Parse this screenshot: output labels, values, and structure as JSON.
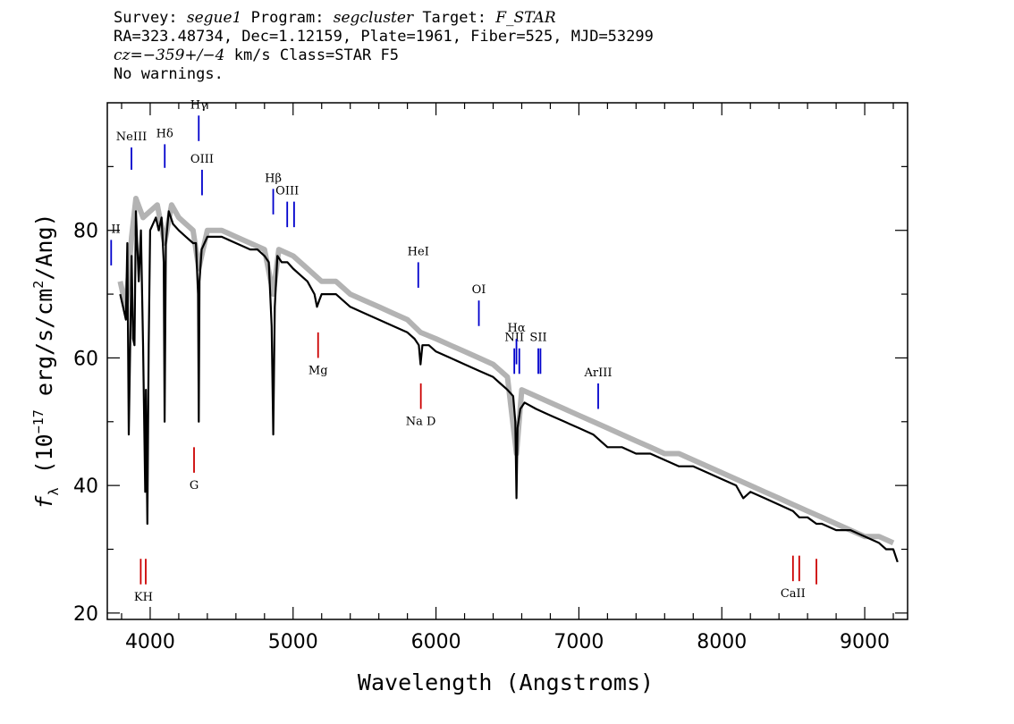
{
  "header": {
    "line1": {
      "survey_label": "Survey: ",
      "survey": "segue1",
      "program_label": " Program: ",
      "program": "segcluster",
      "target_label": " Target: ",
      "target": "F_STAR"
    },
    "line2": "RA=323.48734, Dec=1.12159, Plate=1961, Fiber=525, MJD=53299",
    "line3": {
      "cz_label": "cz=",
      "cz": "−359+/−4",
      "rest": " km/s Class=STAR F5"
    },
    "line4": "No warnings."
  },
  "chart_data": {
    "type": "line",
    "xlabel": "Wavelength (Angstroms)",
    "ylabel": "f_λ (10^-17 erg/s/cm^2/Ang)",
    "xlim": [
      3700,
      9300
    ],
    "ylim": [
      19,
      100
    ],
    "x_ticks": [
      4000,
      5000,
      6000,
      7000,
      8000,
      9000
    ],
    "y_ticks": [
      20,
      40,
      60,
      80
    ],
    "series": [
      {
        "color": "#000000",
        "x": [
          3790,
          3810,
          3830,
          3840,
          3850,
          3870,
          3880,
          3890,
          3900,
          3920,
          3935,
          3950,
          3965,
          3970,
          3980,
          3990,
          4000,
          4020,
          4040,
          4060,
          4080,
          4095,
          4101,
          4110,
          4130,
          4160,
          4200,
          4250,
          4300,
          4320,
          4335,
          4340,
          4345,
          4360,
          4400,
          4500,
          4600,
          4700,
          4750,
          4800,
          4830,
          4850,
          4861,
          4872,
          4890,
          4920,
          4960,
          5000,
          5050,
          5100,
          5150,
          5167,
          5183,
          5200,
          5250,
          5300,
          5400,
          5500,
          5600,
          5700,
          5800,
          5850,
          5880,
          5892,
          5905,
          5950,
          6000,
          6100,
          6200,
          6300,
          6400,
          6450,
          6500,
          6540,
          6555,
          6563,
          6571,
          6590,
          6620,
          6700,
          6800,
          6900,
          7000,
          7100,
          7150,
          7200,
          7300,
          7400,
          7500,
          7600,
          7700,
          7800,
          7900,
          8000,
          8100,
          8150,
          8200,
          8300,
          8400,
          8498,
          8542,
          8600,
          8662,
          8700,
          8800,
          8900,
          9000,
          9100,
          9150,
          9200,
          9230
        ],
        "y": [
          70,
          68,
          66,
          78,
          48,
          76,
          63,
          62,
          83,
          72,
          80,
          62,
          39,
          55,
          34,
          62,
          80,
          81,
          82,
          80,
          82,
          75,
          50,
          78,
          83,
          81,
          80,
          79,
          78,
          78,
          70,
          50,
          72,
          77,
          79,
          79,
          78,
          77,
          77,
          76,
          75,
          65,
          48,
          68,
          76,
          75,
          75,
          74,
          73,
          72,
          70,
          68,
          69,
          70,
          70,
          70,
          68,
          67,
          66,
          65,
          64,
          63,
          62,
          59,
          62,
          62,
          61,
          60,
          59,
          58,
          57,
          56,
          55,
          54,
          50,
          38,
          49,
          52,
          53,
          52,
          51,
          50,
          49,
          48,
          47,
          46,
          46,
          45,
          45,
          44,
          43,
          43,
          42,
          41,
          40,
          38,
          39,
          38,
          37,
          36,
          35,
          35,
          34,
          34,
          33,
          33,
          32,
          31,
          30,
          30,
          28
        ]
      },
      {
        "name": "",
        "color": "#b3b3b3",
        "x": [
          3790,
          3830,
          3870,
          3900,
          3950,
          4000,
          4050,
          4101,
          4150,
          4200,
          4250,
          4300,
          4340,
          4400,
          4500,
          4600,
          4700,
          4800,
          4861,
          4900,
          5000,
          5100,
          5200,
          5300,
          5400,
          5500,
          5600,
          5700,
          5800,
          5892,
          6000,
          6100,
          6200,
          6300,
          6400,
          6500,
          6563,
          6600,
          6700,
          6800,
          6900,
          7000,
          7100,
          7200,
          7300,
          7400,
          7500,
          7600,
          7700,
          7800,
          7900,
          8000,
          8100,
          8200,
          8300,
          8400,
          8500,
          8600,
          8700,
          8800,
          8900,
          9000,
          9100,
          9200
        ],
        "y": [
          72,
          68,
          79,
          85,
          82,
          83,
          84,
          78,
          84,
          82,
          81,
          80,
          74,
          80,
          80,
          79,
          78,
          77,
          70,
          77,
          76,
          74,
          72,
          72,
          70,
          69,
          68,
          67,
          66,
          64,
          63,
          62,
          61,
          60,
          59,
          57,
          45,
          55,
          54,
          53,
          52,
          51,
          50,
          49,
          48,
          47,
          46,
          45,
          45,
          44,
          43,
          42,
          41,
          40,
          39,
          38,
          37,
          36,
          35,
          34,
          33,
          32,
          32,
          31
        ]
      }
    ],
    "emission_lines": [
      {
        "label": "NeIII",
        "wave": 3869,
        "color": "#0000cc",
        "y1": 93,
        "y2": 89.5
      },
      {
        "label": "Hδ",
        "wave": 4102,
        "color": "#0000cc",
        "y1": 93.5,
        "y2": 89.8
      },
      {
        "label": "Hγ",
        "wave": 4340,
        "color": "#0000cc",
        "y1": 98,
        "y2": 94
      },
      {
        "label": "OIII",
        "wave": 4363,
        "color": "#0000cc",
        "y1": 89.5,
        "y2": 85.5
      },
      {
        "label": "Hβ",
        "wave": 4861,
        "color": "#0000cc",
        "y1": 86.5,
        "y2": 82.5
      },
      {
        "label": "OIII",
        "wave": 4959,
        "color": "#0000cc",
        "y1": 84.5,
        "y2": 80.5
      },
      {
        "label": "",
        "wave": 5007,
        "color": "#0000cc",
        "y1": 84.5,
        "y2": 80.5
      },
      {
        "label": "HeI",
        "wave": 5876,
        "color": "#0000cc",
        "y1": 75,
        "y2": 71
      },
      {
        "label": "OI",
        "wave": 6300,
        "color": "#0000cc",
        "y1": 69,
        "y2": 65
      },
      {
        "label": "NII",
        "wave": 6548,
        "color": "#0000cc",
        "y1": 61.5,
        "y2": 57.5
      },
      {
        "label": "Hα",
        "wave": 6563,
        "color": "#0000cc",
        "y1": 63,
        "y2": 59
      },
      {
        "label": "",
        "wave": 6583,
        "color": "#0000cc",
        "y1": 61.5,
        "y2": 57.5
      },
      {
        "label": "SII",
        "wave": 6716,
        "color": "#0000cc",
        "y1": 61.5,
        "y2": 57.5
      },
      {
        "label": "",
        "wave": 6731,
        "color": "#0000cc",
        "y1": 61.5,
        "y2": 57.5
      },
      {
        "label": "ArIII",
        "wave": 7135,
        "color": "#0000cc",
        "y1": 56,
        "y2": 52
      },
      {
        "label": "II",
        "wave": 3727,
        "color": "#0000cc",
        "y1": 78.5,
        "y2": 74.5
      }
    ],
    "absorption_lines": [
      {
        "label": "KH",
        "wave": 3934,
        "color": "#cc0000",
        "y1": 28.5,
        "y2": 24.5
      },
      {
        "label": "",
        "wave": 3969,
        "color": "#cc0000",
        "y1": 28.5,
        "y2": 24.5
      },
      {
        "label": "G",
        "wave": 4307,
        "color": "#cc0000",
        "y1": 46,
        "y2": 42
      },
      {
        "label": "Mg",
        "wave": 5175,
        "color": "#cc0000",
        "y1": 64,
        "y2": 60
      },
      {
        "label": "Na D",
        "wave": 5894,
        "color": "#cc0000",
        "y1": 56,
        "y2": 52
      },
      {
        "label": "CaII",
        "wave": 8498,
        "color": "#cc0000",
        "y1": 29,
        "y2": 25
      },
      {
        "label": "",
        "wave": 8542,
        "color": "#cc0000",
        "y1": 29,
        "y2": 25
      },
      {
        "label": "",
        "wave": 8662,
        "color": "#cc0000",
        "y1": 28.5,
        "y2": 24.5
      }
    ]
  }
}
